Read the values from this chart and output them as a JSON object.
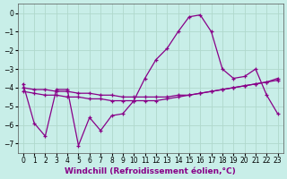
{
  "xlabel": "Windchill (Refroidissement éolien,°C)",
  "bg_color": "#c8eee8",
  "grid_color": "#b0d8cc",
  "line_color": "#880088",
  "x": [
    0,
    1,
    2,
    3,
    4,
    5,
    6,
    7,
    8,
    9,
    10,
    11,
    12,
    13,
    14,
    15,
    16,
    17,
    18,
    19,
    20,
    21,
    22,
    23
  ],
  "line1": [
    -3.8,
    -5.9,
    -6.6,
    -4.1,
    -4.1,
    -7.1,
    -5.6,
    -6.3,
    -5.5,
    -5.4,
    -4.7,
    -3.5,
    -2.5,
    -1.9,
    -1.0,
    -0.2,
    -0.1,
    -1.0,
    -3.0,
    -3.5,
    -3.4,
    -3.0,
    -4.4,
    -5.4
  ],
  "line2": [
    -4.2,
    -4.3,
    -4.4,
    -4.4,
    -4.5,
    -4.5,
    -4.6,
    -4.6,
    -4.7,
    -4.7,
    -4.7,
    -4.7,
    -4.7,
    -4.6,
    -4.5,
    -4.4,
    -4.3,
    -4.2,
    -4.1,
    -4.0,
    -3.9,
    -3.8,
    -3.7,
    -3.6
  ],
  "line3": [
    -4.0,
    -4.1,
    -4.1,
    -4.2,
    -4.2,
    -4.3,
    -4.3,
    -4.4,
    -4.4,
    -4.5,
    -4.5,
    -4.5,
    -4.5,
    -4.5,
    -4.4,
    -4.4,
    -4.3,
    -4.2,
    -4.1,
    -4.0,
    -3.9,
    -3.8,
    -3.7,
    -3.5
  ],
  "ylim": [
    -7.5,
    0.5
  ],
  "xlim": [
    -0.5,
    23.5
  ],
  "yticks": [
    0,
    -1,
    -2,
    -3,
    -4,
    -5,
    -6,
    -7
  ],
  "xticks": [
    0,
    1,
    2,
    3,
    4,
    5,
    6,
    7,
    8,
    9,
    10,
    11,
    12,
    13,
    14,
    15,
    16,
    17,
    18,
    19,
    20,
    21,
    22,
    23
  ],
  "tick_fontsize": 5.5,
  "xlabel_fontsize": 6.5,
  "marker": "+"
}
